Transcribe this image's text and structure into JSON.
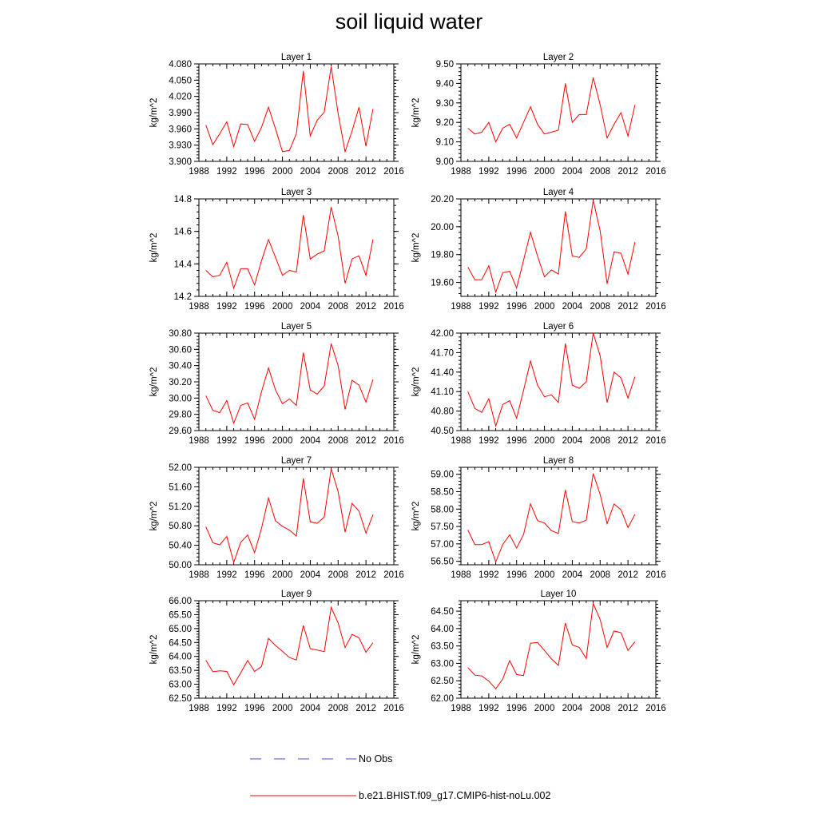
{
  "figure": {
    "title": "soil liquid water"
  },
  "legend": {
    "entries": [
      {
        "label": "No Obs",
        "color": "#4a4ad0",
        "dashed": true
      },
      {
        "label": "b.e21.BHIST.f09_g17.CMIP6-hist-noLu.002",
        "color": "#ff0000",
        "dashed": false
      }
    ]
  },
  "chart_data": [
    {
      "type": "line",
      "title": "Layer 1",
      "ylabel": "kg/m^2",
      "xlim": [
        1988,
        2016
      ],
      "xticks": [
        "1988",
        "1992",
        "1996",
        "2000",
        "2004",
        "2008",
        "2012",
        "2016"
      ],
      "ylim": [
        3.9,
        4.08
      ],
      "yticks": [
        "3.900",
        "3.930",
        "3.960",
        "3.990",
        "4.020",
        "4.050",
        "4.080"
      ],
      "x": [
        1989,
        1990,
        1991,
        1992,
        1993,
        1994,
        1995,
        1996,
        1997,
        1998,
        1999,
        2000,
        2001,
        2002,
        2003,
        2004,
        2005,
        2006,
        2007,
        2008,
        2009,
        2010,
        2011,
        2012,
        2013
      ],
      "series": [
        {
          "color": "#ff0000",
          "values": [
            3.967,
            3.931,
            3.951,
            3.973,
            3.927,
            3.969,
            3.968,
            3.937,
            3.963,
            4.0,
            3.96,
            3.918,
            3.92,
            3.951,
            4.067,
            3.947,
            3.976,
            3.991,
            4.075,
            3.988,
            3.918,
            3.956,
            4.0,
            3.928,
            3.997
          ]
        }
      ]
    },
    {
      "type": "line",
      "title": "Layer 2",
      "ylabel": "kg/m^2",
      "xlim": [
        1988,
        2016
      ],
      "xticks": [
        "1988",
        "1992",
        "1996",
        "2000",
        "2004",
        "2008",
        "2012",
        "2016"
      ],
      "ylim": [
        9.0,
        9.5
      ],
      "yticks": [
        "9.00",
        "9.10",
        "9.20",
        "9.30",
        "9.40",
        "9.50"
      ],
      "x": [
        1989,
        1990,
        1991,
        1992,
        1993,
        1994,
        1995,
        1996,
        1997,
        1998,
        1999,
        2000,
        2001,
        2002,
        2003,
        2004,
        2005,
        2006,
        2007,
        2008,
        2009,
        2010,
        2011,
        2012,
        2013
      ],
      "series": [
        {
          "color": "#ff0000",
          "values": [
            9.17,
            9.14,
            9.15,
            9.2,
            9.1,
            9.17,
            9.19,
            9.12,
            9.2,
            9.28,
            9.19,
            9.14,
            9.15,
            9.16,
            9.4,
            9.2,
            9.24,
            9.24,
            9.43,
            9.29,
            9.12,
            9.19,
            9.25,
            9.13,
            9.29
          ]
        }
      ]
    },
    {
      "type": "line",
      "title": "Layer 3",
      "ylabel": "kg/m^2",
      "xlim": [
        1988,
        2016
      ],
      "xticks": [
        "1988",
        "1992",
        "1996",
        "2000",
        "2004",
        "2008",
        "2012",
        "2016"
      ],
      "ylim": [
        14.2,
        14.8
      ],
      "yticks": [
        "14.2",
        "14.4",
        "14.6",
        "14.8"
      ],
      "x": [
        1989,
        1990,
        1991,
        1992,
        1993,
        1994,
        1995,
        1996,
        1997,
        1998,
        1999,
        2000,
        2001,
        2002,
        2003,
        2004,
        2005,
        2006,
        2007,
        2008,
        2009,
        2010,
        2011,
        2012,
        2013
      ],
      "series": [
        {
          "color": "#ff0000",
          "values": [
            14.36,
            14.32,
            14.33,
            14.41,
            14.25,
            14.37,
            14.37,
            14.27,
            14.42,
            14.55,
            14.44,
            14.33,
            14.36,
            14.35,
            14.7,
            14.43,
            14.46,
            14.48,
            14.75,
            14.57,
            14.28,
            14.43,
            14.45,
            14.33,
            14.55
          ]
        }
      ]
    },
    {
      "type": "line",
      "title": "Layer 4",
      "ylabel": "kg/m^2",
      "xlim": [
        1988,
        2016
      ],
      "xticks": [
        "1988",
        "1992",
        "1996",
        "2000",
        "2004",
        "2008",
        "2012",
        "2016"
      ],
      "ylim": [
        19.5,
        20.2
      ],
      "yticks": [
        "19.60",
        "19.80",
        "20.00",
        "20.20"
      ],
      "x": [
        1989,
        1990,
        1991,
        1992,
        1993,
        1994,
        1995,
        1996,
        1997,
        1998,
        1999,
        2000,
        2001,
        2002,
        2003,
        2004,
        2005,
        2006,
        2007,
        2008,
        2009,
        2010,
        2011,
        2012,
        2013
      ],
      "series": [
        {
          "color": "#ff0000",
          "values": [
            19.71,
            19.62,
            19.62,
            19.72,
            19.53,
            19.67,
            19.68,
            19.56,
            19.76,
            19.96,
            19.79,
            19.64,
            19.69,
            19.66,
            20.11,
            19.79,
            19.78,
            19.84,
            20.19,
            19.97,
            19.59,
            19.82,
            19.81,
            19.66,
            19.89
          ]
        }
      ]
    },
    {
      "type": "line",
      "title": "Layer 5",
      "ylabel": "kg/m^2",
      "xlim": [
        1988,
        2016
      ],
      "xticks": [
        "1988",
        "1992",
        "1996",
        "2000",
        "2004",
        "2008",
        "2012",
        "2016"
      ],
      "ylim": [
        29.6,
        30.8
      ],
      "yticks": [
        "29.60",
        "29.80",
        "30.00",
        "30.20",
        "30.40",
        "30.60",
        "30.80"
      ],
      "x": [
        1989,
        1990,
        1991,
        1992,
        1993,
        1994,
        1995,
        1996,
        1997,
        1998,
        1999,
        2000,
        2001,
        2002,
        2003,
        2004,
        2005,
        2006,
        2007,
        2008,
        2009,
        2010,
        2011,
        2012,
        2013
      ],
      "series": [
        {
          "color": "#ff0000",
          "values": [
            30.03,
            29.85,
            29.82,
            29.97,
            29.69,
            29.91,
            29.94,
            29.74,
            30.08,
            30.37,
            30.1,
            29.93,
            29.99,
            29.91,
            30.56,
            30.1,
            30.05,
            30.15,
            30.67,
            30.4,
            29.86,
            30.22,
            30.16,
            29.95,
            30.23
          ]
        }
      ]
    },
    {
      "type": "line",
      "title": "Layer 6",
      "ylabel": "kg/m^2",
      "xlim": [
        1988,
        2016
      ],
      "xticks": [
        "1988",
        "1992",
        "1996",
        "2000",
        "2004",
        "2008",
        "2012",
        "2016"
      ],
      "ylim": [
        40.5,
        42.0
      ],
      "yticks": [
        "40.50",
        "40.80",
        "41.10",
        "41.40",
        "41.70",
        "42.00"
      ],
      "x": [
        1989,
        1990,
        1991,
        1992,
        1993,
        1994,
        1995,
        1996,
        1997,
        1998,
        1999,
        2000,
        2001,
        2002,
        2003,
        2004,
        2005,
        2006,
        2007,
        2008,
        2009,
        2010,
        2011,
        2012,
        2013
      ],
      "series": [
        {
          "color": "#ff0000",
          "values": [
            41.1,
            40.84,
            40.78,
            40.99,
            40.57,
            40.9,
            40.96,
            40.69,
            41.12,
            41.57,
            41.2,
            41.02,
            41.05,
            40.93,
            41.84,
            41.2,
            41.15,
            41.25,
            42.0,
            41.65,
            40.93,
            41.4,
            41.31,
            41.0,
            41.33
          ]
        }
      ]
    },
    {
      "type": "line",
      "title": "Layer 7",
      "ylabel": "kg/m^2",
      "xlim": [
        1988,
        2016
      ],
      "xticks": [
        "1988",
        "1992",
        "1996",
        "2000",
        "2004",
        "2008",
        "2012",
        "2016"
      ],
      "ylim": [
        50.0,
        52.0
      ],
      "yticks": [
        "50.00",
        "50.40",
        "50.80",
        "51.20",
        "51.60",
        "52.00"
      ],
      "x": [
        1989,
        1990,
        1991,
        1992,
        1993,
        1994,
        1995,
        1996,
        1997,
        1998,
        1999,
        2000,
        2001,
        2002,
        2003,
        2004,
        2005,
        2006,
        2007,
        2008,
        2009,
        2010,
        2011,
        2012,
        2013
      ],
      "series": [
        {
          "color": "#ff0000",
          "values": [
            50.78,
            50.45,
            50.41,
            50.58,
            50.05,
            50.46,
            50.61,
            50.25,
            50.75,
            51.37,
            50.9,
            50.79,
            50.71,
            50.59,
            51.77,
            50.88,
            50.85,
            50.98,
            51.97,
            51.5,
            50.67,
            51.26,
            51.1,
            50.65,
            51.03
          ]
        }
      ]
    },
    {
      "type": "line",
      "title": "Layer 8",
      "ylabel": "kg/m^2",
      "xlim": [
        1988,
        2016
      ],
      "xticks": [
        "1988",
        "1992",
        "1996",
        "2000",
        "2004",
        "2008",
        "2012",
        "2016"
      ],
      "ylim": [
        56.4,
        59.2
      ],
      "yticks": [
        "56.50",
        "57.00",
        "57.50",
        "58.00",
        "58.50",
        "59.00"
      ],
      "x": [
        1989,
        1990,
        1991,
        1992,
        1993,
        1994,
        1995,
        1996,
        1997,
        1998,
        1999,
        2000,
        2001,
        2002,
        2003,
        2004,
        2005,
        2006,
        2007,
        2008,
        2009,
        2010,
        2011,
        2012,
        2013
      ],
      "series": [
        {
          "color": "#ff0000",
          "values": [
            57.4,
            56.98,
            56.98,
            57.06,
            56.48,
            56.98,
            57.26,
            56.88,
            57.27,
            58.15,
            57.67,
            57.6,
            57.38,
            57.3,
            58.55,
            57.64,
            57.6,
            57.68,
            59.02,
            58.42,
            57.58,
            58.15,
            57.98,
            57.47,
            57.85
          ]
        }
      ]
    },
    {
      "type": "line",
      "title": "Layer 9",
      "ylabel": "kg/m^2",
      "xlim": [
        1988,
        2016
      ],
      "xticks": [
        "1988",
        "1992",
        "1996",
        "2000",
        "2004",
        "2008",
        "2012",
        "2016"
      ],
      "ylim": [
        62.5,
        66.0
      ],
      "yticks": [
        "62.50",
        "63.00",
        "63.50",
        "64.00",
        "64.50",
        "65.00",
        "65.50",
        "66.00"
      ],
      "x": [
        1989,
        1990,
        1991,
        1992,
        1993,
        1994,
        1995,
        1996,
        1997,
        1998,
        1999,
        2000,
        2001,
        2002,
        2003,
        2004,
        2005,
        2006,
        2007,
        2008,
        2009,
        2010,
        2011,
        2012,
        2013
      ],
      "series": [
        {
          "color": "#ff0000",
          "values": [
            63.86,
            63.45,
            63.48,
            63.46,
            62.98,
            63.41,
            63.85,
            63.46,
            63.64,
            64.65,
            64.39,
            64.18,
            63.96,
            63.87,
            65.11,
            64.28,
            64.23,
            64.17,
            65.76,
            65.2,
            64.32,
            64.79,
            64.67,
            64.15,
            64.49
          ]
        }
      ]
    },
    {
      "type": "line",
      "title": "Layer 10",
      "ylabel": "kg/m^2",
      "xlim": [
        1988,
        2016
      ],
      "xticks": [
        "1988",
        "1992",
        "1996",
        "2000",
        "2004",
        "2008",
        "2012",
        "2016"
      ],
      "ylim": [
        62.0,
        64.8
      ],
      "yticks": [
        "62.00",
        "62.50",
        "63.00",
        "63.50",
        "64.00",
        "64.50"
      ],
      "x": [
        1989,
        1990,
        1991,
        1992,
        1993,
        1994,
        1995,
        1996,
        1997,
        1998,
        1999,
        2000,
        2001,
        2002,
        2003,
        2004,
        2005,
        2006,
        2007,
        2008,
        2009,
        2010,
        2011,
        2012,
        2013
      ],
      "series": [
        {
          "color": "#ff0000",
          "values": [
            62.88,
            62.66,
            62.64,
            62.49,
            62.27,
            62.55,
            63.08,
            62.68,
            62.65,
            63.58,
            63.6,
            63.37,
            63.13,
            62.94,
            64.16,
            63.53,
            63.46,
            63.14,
            64.72,
            64.26,
            63.46,
            63.93,
            63.88,
            63.37,
            63.62
          ]
        }
      ]
    }
  ]
}
